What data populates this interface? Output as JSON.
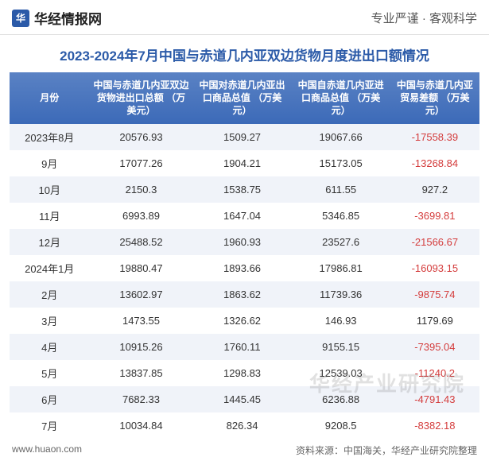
{
  "header": {
    "brand": "华经情报网",
    "tagline": "专业严谨 · 客观科学"
  },
  "title": "2023-2024年7月中国与赤道几内亚双边货物月度进出口额情况",
  "table": {
    "columns": [
      "月份",
      "中国与赤道几内亚双边货物进出口总额\n（万美元）",
      "中国对赤道几内亚出口商品总值\n（万美元）",
      "中国自赤道几内亚进口商品总值\n（万美元）",
      "中国与赤道几内亚贸易差额\n（万美元）"
    ],
    "rows": [
      {
        "month": "2023年8月",
        "total": "20576.93",
        "export": "1509.27",
        "import": "19067.66",
        "balance": "-17558.39"
      },
      {
        "month": "9月",
        "total": "17077.26",
        "export": "1904.21",
        "import": "15173.05",
        "balance": "-13268.84"
      },
      {
        "month": "10月",
        "total": "2150.3",
        "export": "1538.75",
        "import": "611.55",
        "balance": "927.2"
      },
      {
        "month": "11月",
        "total": "6993.89",
        "export": "1647.04",
        "import": "5346.85",
        "balance": "-3699.81"
      },
      {
        "month": "12月",
        "total": "25488.52",
        "export": "1960.93",
        "import": "23527.6",
        "balance": "-21566.67"
      },
      {
        "month": "2024年1月",
        "total": "19880.47",
        "export": "1893.66",
        "import": "17986.81",
        "balance": "-16093.15"
      },
      {
        "month": "2月",
        "total": "13602.97",
        "export": "1863.62",
        "import": "11739.36",
        "balance": "-9875.74"
      },
      {
        "month": "3月",
        "total": "1473.55",
        "export": "1326.62",
        "import": "146.93",
        "balance": "1179.69"
      },
      {
        "month": "4月",
        "total": "10915.26",
        "export": "1760.11",
        "import": "9155.15",
        "balance": "-7395.04"
      },
      {
        "month": "5月",
        "total": "13837.85",
        "export": "1298.83",
        "import": "12539.03",
        "balance": "-11240.2"
      },
      {
        "month": "6月",
        "total": "7682.33",
        "export": "1445.45",
        "import": "6236.88",
        "balance": "-4791.43"
      },
      {
        "month": "7月",
        "total": "10034.84",
        "export": "826.34",
        "import": "9208.5",
        "balance": "-8382.18"
      }
    ]
  },
  "footer": {
    "site": "www.huaon.com",
    "source": "资料来源：中国海关，华经产业研究院整理"
  },
  "watermark": "华经产业研究院",
  "colors": {
    "header_grad_top": "#5a82c4",
    "header_grad_bottom": "#3c6ab8",
    "title_color": "#2b5aa8",
    "row_odd": "#f0f3f9",
    "row_even": "#ffffff",
    "negative": "#d43c3c",
    "text": "#333333"
  }
}
